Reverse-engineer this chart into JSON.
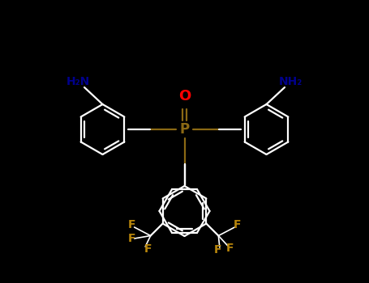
{
  "bg_color": "#000000",
  "line_color": "#1a1a1a",
  "P_color": "#8B6914",
  "O_color": "#ff0000",
  "N_color": "#00008b",
  "F_color": "#b8860b",
  "bond_color": "#1a1a1a",
  "P_label": "P",
  "O_label": "O",
  "figsize": [
    4.55,
    3.5
  ],
  "dpi": 100,
  "xlim": [
    0,
    9.1
  ],
  "ylim": [
    0,
    7.0
  ]
}
